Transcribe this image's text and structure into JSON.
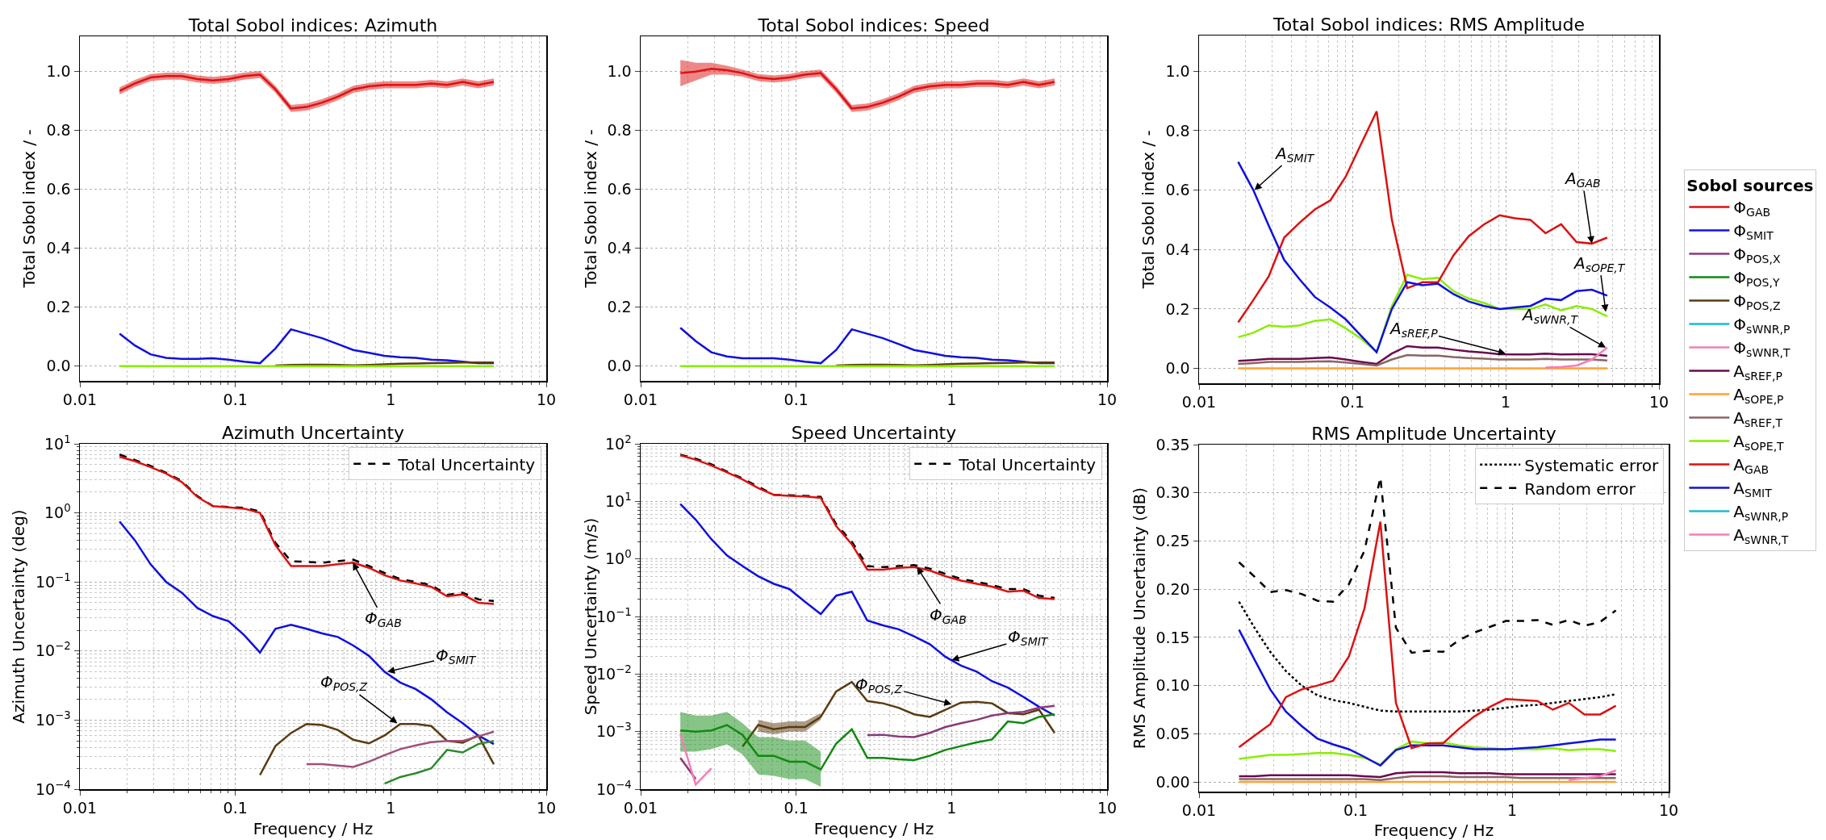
{
  "chart_data": [
    {
      "type": "line",
      "title": "Total Sobol indices: Azimuth",
      "ylabel": "Total Sobol index / -",
      "log": "x",
      "grid": true,
      "legend": false,
      "xlim": [
        0.01,
        10
      ],
      "xticks": [
        0.01,
        0.1,
        1,
        10
      ],
      "ylim": [
        -0.05,
        1.12
      ],
      "yticks": [
        {
          "value": 0,
          "label": "0.0"
        },
        {
          "value": 0.2,
          "label": "0.2"
        },
        {
          "value": 0.4,
          "label": "0.4"
        },
        {
          "value": 0.6,
          "label": "0.6"
        },
        {
          "value": 0.8,
          "label": "0.8"
        },
        {
          "value": 1,
          "label": "1.0"
        }
      ],
      "x": [
        0.018,
        0.0226,
        0.0285,
        0.0359,
        0.0452,
        0.057,
        0.0718,
        0.0905,
        0.114,
        0.144,
        0.181,
        0.228,
        0.287,
        0.362,
        0.456,
        0.574,
        0.724,
        0.912,
        1.15,
        1.45,
        1.82,
        2.3,
        2.9,
        3.65,
        4.6
      ],
      "series": [
        {
          "color": "#dd1111",
          "values": [
            0.935,
            0.96,
            0.98,
            0.985,
            0.985,
            0.975,
            0.97,
            0.975,
            0.985,
            0.99,
            0.94,
            0.875,
            0.88,
            0.895,
            0.915,
            0.94,
            0.95,
            0.955,
            0.955,
            0.955,
            0.96,
            0.955,
            0.965,
            0.955,
            0.965
          ],
          "lower": [
            0.923,
            0.948,
            0.968,
            0.973,
            0.973,
            0.963,
            0.958,
            0.963,
            0.973,
            0.978,
            0.928,
            0.863,
            0.868,
            0.883,
            0.903,
            0.928,
            0.938,
            0.943,
            0.943,
            0.943,
            0.948,
            0.943,
            0.953,
            0.943,
            0.953
          ],
          "upper": [
            0.947,
            0.972,
            0.992,
            0.997,
            0.997,
            0.987,
            0.982,
            0.987,
            0.997,
            1.002,
            0.952,
            0.887,
            0.892,
            0.907,
            0.927,
            0.952,
            0.962,
            0.967,
            0.967,
            0.967,
            0.972,
            0.967,
            0.977,
            0.967,
            0.977
          ]
        },
        {
          "color": "#1010e0",
          "values": [
            0.11,
            0.07,
            0.04,
            0.028,
            0.025,
            0.025,
            0.027,
            0.022,
            0.015,
            0.01,
            0.06,
            0.125,
            0.11,
            0.095,
            0.075,
            0.055,
            0.045,
            0.035,
            0.03,
            0.028,
            0.022,
            0.02,
            0.015,
            0.01,
            0.01
          ]
        },
        {
          "color": "#5a3a10",
          "values": [
            null,
            null,
            null,
            null,
            null,
            null,
            null,
            null,
            null,
            null,
            0.002,
            0.004,
            0.005,
            0.005,
            0.004,
            0.003,
            0.004,
            0.006,
            0.008,
            0.009,
            0.01,
            0.011,
            0.012,
            0.012,
            0.012
          ]
        },
        {
          "color": "#88ee00",
          "values": [
            0,
            0,
            0,
            0,
            0,
            0,
            0,
            0,
            0,
            0,
            0,
            0,
            0,
            0,
            0,
            0,
            0,
            0,
            0,
            0,
            0,
            0,
            0,
            0,
            0
          ]
        }
      ]
    },
    {
      "type": "line",
      "title": "Total Sobol indices: Speed",
      "ylabel": "Total Sobol index / -",
      "log": "x",
      "grid": true,
      "legend": false,
      "xlim": [
        0.01,
        10
      ],
      "xticks": [
        0.01,
        0.1,
        1,
        10
      ],
      "ylim": [
        -0.05,
        1.12
      ],
      "yticks": [
        {
          "value": 0,
          "label": "0.0"
        },
        {
          "value": 0.2,
          "label": "0.2"
        },
        {
          "value": 0.4,
          "label": "0.4"
        },
        {
          "value": 0.6,
          "label": "0.6"
        },
        {
          "value": 0.8,
          "label": "0.8"
        },
        {
          "value": 1,
          "label": "1.0"
        }
      ],
      "x": [
        0.018,
        0.0226,
        0.0285,
        0.0359,
        0.0452,
        0.057,
        0.0718,
        0.0905,
        0.114,
        0.144,
        0.181,
        0.228,
        0.287,
        0.362,
        0.456,
        0.574,
        0.724,
        0.912,
        1.15,
        1.45,
        1.82,
        2.3,
        2.9,
        3.65,
        4.6
      ],
      "series": [
        {
          "color": "#dd1111",
          "values": [
            0.995,
            1.0,
            1.01,
            1.005,
            0.995,
            0.98,
            0.975,
            0.98,
            0.99,
            0.995,
            0.94,
            0.875,
            0.88,
            0.895,
            0.915,
            0.94,
            0.95,
            0.955,
            0.955,
            0.96,
            0.96,
            0.955,
            0.965,
            0.955,
            0.965
          ],
          "lower": [
            0.95,
            0.97,
            0.99,
            0.99,
            0.983,
            0.968,
            0.963,
            0.968,
            0.978,
            0.983,
            0.928,
            0.863,
            0.868,
            0.883,
            0.903,
            0.928,
            0.938,
            0.943,
            0.943,
            0.948,
            0.948,
            0.943,
            0.953,
            0.943,
            0.953
          ],
          "upper": [
            1.04,
            1.03,
            1.03,
            1.02,
            1.007,
            0.992,
            0.987,
            0.992,
            1.002,
            1.007,
            0.952,
            0.887,
            0.892,
            0.907,
            0.927,
            0.952,
            0.962,
            0.967,
            0.967,
            0.972,
            0.972,
            0.967,
            0.977,
            0.967,
            0.977
          ]
        },
        {
          "color": "#1010e0",
          "values": [
            0.13,
            0.085,
            0.047,
            0.033,
            0.027,
            0.027,
            0.027,
            0.022,
            0.015,
            0.01,
            0.055,
            0.125,
            0.11,
            0.095,
            0.075,
            0.055,
            0.045,
            0.035,
            0.03,
            0.028,
            0.022,
            0.02,
            0.015,
            0.01,
            0.01
          ]
        },
        {
          "color": "#5a3a10",
          "values": [
            null,
            null,
            null,
            null,
            null,
            null,
            null,
            null,
            null,
            null,
            0.002,
            0.004,
            0.005,
            0.005,
            0.004,
            0.003,
            0.004,
            0.006,
            0.008,
            0.009,
            0.01,
            0.011,
            0.012,
            0.012,
            0.012
          ]
        },
        {
          "color": "#88ee00",
          "values": [
            0,
            0,
            0,
            0,
            0,
            0,
            0,
            0,
            0,
            0,
            0,
            0,
            0,
            0,
            0,
            0,
            0,
            0,
            0,
            0,
            0,
            0,
            0,
            0,
            0
          ]
        }
      ]
    },
    {
      "type": "line",
      "title": "Total Sobol indices: RMS Amplitude",
      "ylabel": "Total Sobol index / -",
      "log": "x",
      "grid": true,
      "legend": "right",
      "legend_title": "Sobol sources",
      "xlim": [
        0.01,
        10
      ],
      "xticks": [
        0.01,
        0.1,
        1,
        10
      ],
      "ylim": [
        -0.05,
        1.12
      ],
      "yticks": [
        {
          "value": 0,
          "label": "0.0"
        },
        {
          "value": 0.2,
          "label": "0.2"
        },
        {
          "value": 0.4,
          "label": "0.4"
        },
        {
          "value": 0.6,
          "label": "0.6"
        },
        {
          "value": 0.8,
          "label": "0.8"
        },
        {
          "value": 1,
          "label": "1.0"
        }
      ],
      "x": [
        0.018,
        0.0226,
        0.0285,
        0.0359,
        0.0452,
        0.057,
        0.0718,
        0.0905,
        0.114,
        0.144,
        0.181,
        0.228,
        0.287,
        0.362,
        0.456,
        0.574,
        0.724,
        0.912,
        1.15,
        1.45,
        1.82,
        2.3,
        2.9,
        3.65,
        4.6
      ],
      "annotations": [
        {
          "text": "A$_{SMIT}$",
          "x": 0.023,
          "y": 0.6
        },
        {
          "text": "A$_{GAB}$",
          "x": 3.65,
          "y": 0.42
        },
        {
          "text": "A$_{sOPE,T}$",
          "x": 4.5,
          "y": 0.19
        },
        {
          "text": "A$_{sREF,P}$",
          "x": 1.0,
          "y": 0.05
        },
        {
          "text": "A$_{sWNR,T}$",
          "x": 4.5,
          "y": 0.07
        }
      ],
      "series": [
        {
          "name": "Φ$_{GAB}$",
          "color": "#dd1111",
          "values": [
            null,
            null,
            null,
            null,
            null,
            null,
            null,
            null,
            null,
            null,
            null,
            null,
            null,
            null,
            null,
            null,
            null,
            null,
            null,
            null,
            null,
            null,
            null,
            null,
            null
          ]
        },
        {
          "name": "Φ$_{SMIT}$",
          "color": "#1010e0",
          "values": [
            null,
            null,
            null,
            null,
            null,
            null,
            null,
            null,
            null,
            null,
            null,
            null,
            null,
            null,
            null,
            null,
            null,
            null,
            null,
            null,
            null,
            null,
            null,
            null,
            null
          ]
        },
        {
          "name": "Φ$_{POS,X}$",
          "color": "#8b3a78",
          "values": [
            null,
            null,
            null,
            null,
            null,
            null,
            null,
            null,
            null,
            null,
            null,
            null,
            null,
            null,
            null,
            null,
            null,
            null,
            null,
            null,
            null,
            null,
            null,
            null,
            null
          ]
        },
        {
          "name": "Φ$_{POS,Y}$",
          "color": "#108a10",
          "values": [
            null,
            null,
            null,
            null,
            null,
            null,
            null,
            null,
            null,
            null,
            null,
            null,
            null,
            null,
            null,
            null,
            null,
            null,
            null,
            null,
            null,
            null,
            null,
            null,
            null
          ]
        },
        {
          "name": "Φ$_{POS,Z}$",
          "color": "#5a3a10",
          "values": [
            null,
            null,
            null,
            null,
            null,
            null,
            null,
            null,
            null,
            null,
            null,
            null,
            null,
            null,
            null,
            null,
            null,
            null,
            null,
            null,
            null,
            null,
            null,
            null,
            null
          ]
        },
        {
          "name": "Φ$_{sWNR,P}$",
          "color": "#17becf",
          "values": [
            null,
            null,
            null,
            null,
            null,
            null,
            null,
            null,
            null,
            null,
            null,
            null,
            null,
            null,
            null,
            null,
            null,
            null,
            null,
            null,
            null,
            null,
            null,
            null,
            null
          ]
        },
        {
          "name": "Φ$_{sWNR,T}$",
          "color": "#f27fb8",
          "values": [
            null,
            null,
            null,
            null,
            null,
            null,
            null,
            null,
            null,
            null,
            null,
            null,
            null,
            null,
            null,
            null,
            null,
            null,
            null,
            null,
            null,
            null,
            null,
            null,
            null
          ]
        },
        {
          "name": "A$_{sREF,P}$",
          "color": "#6a0a50",
          "values": [
            0.025,
            0.028,
            0.032,
            0.032,
            0.032,
            0.035,
            0.037,
            0.03,
            0.022,
            0.015,
            0.05,
            0.075,
            0.07,
            0.07,
            0.063,
            0.057,
            0.053,
            0.048,
            0.047,
            0.047,
            0.05,
            0.047,
            0.048,
            0.048,
            0.042
          ]
        },
        {
          "name": "A$_{sOPE,P}$",
          "color": "#ffa030",
          "values": [
            0,
            0,
            0,
            0,
            0,
            0,
            0,
            0,
            0,
            0,
            0,
            0,
            0,
            0,
            0,
            0,
            0,
            0,
            0,
            0,
            0,
            0,
            0,
            0,
            0
          ]
        },
        {
          "name": "A$_{sREF,T}$",
          "color": "#8c6464",
          "values": [
            0.015,
            0.018,
            0.022,
            0.022,
            0.022,
            0.023,
            0.024,
            0.02,
            0.015,
            0.01,
            0.03,
            0.045,
            0.043,
            0.043,
            0.038,
            0.035,
            0.033,
            0.03,
            0.03,
            0.03,
            0.032,
            0.03,
            0.03,
            0.03,
            0.027
          ]
        },
        {
          "name": "A$_{sOPE,T}$",
          "color": "#88ee00",
          "values": [
            0.105,
            0.12,
            0.145,
            0.14,
            0.145,
            0.16,
            0.165,
            0.135,
            0.1,
            0.055,
            0.21,
            0.315,
            0.3,
            0.305,
            0.26,
            0.235,
            0.22,
            0.2,
            0.2,
            0.2,
            0.215,
            0.195,
            0.21,
            0.2,
            0.175
          ]
        },
        {
          "name": "A$_{GAB}$",
          "color": "#dd1111",
          "values": [
            0.155,
            0.23,
            0.31,
            0.44,
            0.49,
            0.535,
            0.565,
            0.645,
            0.755,
            0.865,
            0.5,
            0.27,
            0.29,
            0.29,
            0.38,
            0.445,
            0.485,
            0.515,
            0.505,
            0.5,
            0.455,
            0.485,
            0.425,
            0.42,
            0.44
          ]
        },
        {
          "name": "A$_{SMIT}$",
          "color": "#1010e0",
          "values": [
            0.695,
            0.6,
            0.48,
            0.365,
            0.3,
            0.24,
            0.205,
            0.165,
            0.11,
            0.055,
            0.2,
            0.29,
            0.28,
            0.285,
            0.25,
            0.225,
            0.21,
            0.2,
            0.205,
            0.21,
            0.235,
            0.23,
            0.26,
            0.265,
            0.245
          ]
        },
        {
          "name": "A$_{sWNR,P}$",
          "color": "#17becf",
          "values": [
            null,
            null,
            null,
            null,
            null,
            null,
            null,
            null,
            null,
            null,
            null,
            null,
            null,
            null,
            null,
            null,
            null,
            null,
            null,
            null,
            null,
            null,
            null,
            null,
            null
          ]
        },
        {
          "name": "A$_{sWNR,T}$",
          "color": "#f27fb8",
          "values": [
            null,
            null,
            null,
            null,
            null,
            null,
            null,
            null,
            null,
            null,
            null,
            null,
            null,
            null,
            null,
            null,
            null,
            null,
            null,
            null,
            0.003,
            0.005,
            0.01,
            0.03,
            0.07
          ]
        }
      ]
    },
    {
      "type": "line",
      "title": "Azimuth Uncertainty",
      "xlabel": "Frequency / Hz",
      "ylabel": "Azimuth Uncertainty (deg)",
      "log": "xy",
      "grid": true,
      "legend": "top right",
      "xlim": [
        0.01,
        10
      ],
      "xticks": [
        0.01,
        0.1,
        1,
        10
      ],
      "ylim": [
        0.0001,
        10
      ],
      "yticks": [
        {
          "value": 0.0001,
          "label": "10$^{−4}$"
        },
        {
          "value": 0.001,
          "label": "10$^{−3}$"
        },
        {
          "value": 0.01,
          "label": "10$^{−2}$"
        },
        {
          "value": 0.1,
          "label": "10$^{−1}$"
        },
        {
          "value": 1,
          "label": "10$^{0}$"
        },
        {
          "value": 10,
          "label": "10$^{1}$"
        }
      ],
      "x": [
        0.018,
        0.0226,
        0.0285,
        0.0359,
        0.0452,
        0.057,
        0.0718,
        0.0905,
        0.114,
        0.144,
        0.181,
        0.228,
        0.287,
        0.362,
        0.456,
        0.574,
        0.724,
        0.912,
        1.15,
        1.45,
        1.82,
        2.3,
        2.9,
        3.65,
        4.6
      ],
      "annotations": [
        {
          "text": "Φ$_{GAB}$",
          "x": 0.57,
          "y": 0.19
        },
        {
          "text": "Φ$_{SMIT}$",
          "x": 0.95,
          "y": 0.005
        },
        {
          "text": "Φ$_{POS,Z}$",
          "x": 1.1,
          "y": 0.0009
        }
      ],
      "series": [
        {
          "name": "Total Uncertainty",
          "color": "#000000",
          "line_style": "dashed",
          "values": [
            7,
            5.8,
            4.8,
            3.8,
            2.9,
            1.75,
            1.25,
            1.22,
            1.18,
            1.05,
            0.37,
            0.2,
            0.195,
            0.19,
            0.2,
            0.21,
            0.17,
            0.135,
            0.11,
            0.1,
            0.09,
            0.065,
            0.07,
            0.056,
            0.053
          ]
        },
        {
          "color": "#dd1111",
          "values": [
            6.5,
            5.6,
            4.6,
            3.7,
            2.8,
            1.7,
            1.25,
            1.2,
            1.15,
            1.0,
            0.34,
            0.17,
            0.17,
            0.17,
            0.18,
            0.19,
            0.16,
            0.125,
            0.105,
            0.095,
            0.085,
            0.062,
            0.066,
            0.05,
            0.048
          ]
        },
        {
          "color": "#1010e0",
          "values": [
            0.75,
            0.4,
            0.18,
            0.1,
            0.07,
            0.042,
            0.032,
            0.027,
            0.017,
            0.0095,
            0.021,
            0.024,
            0.021,
            0.018,
            0.016,
            0.012,
            0.0085,
            0.005,
            0.0035,
            0.0028,
            0.002,
            0.0013,
            0.0009,
            0.0006,
            0.00045
          ]
        },
        {
          "color": "#5a3a10",
          "values": [
            null,
            null,
            null,
            null,
            null,
            null,
            null,
            null,
            null,
            0.00016,
            0.00042,
            0.00065,
            0.00088,
            0.00085,
            0.00072,
            0.00052,
            0.00046,
            0.0006,
            0.00088,
            0.00088,
            0.00082,
            0.0005,
            0.00047,
            0.0006,
            0.00023
          ]
        },
        {
          "color": "#a0507a",
          "values": [
            null,
            null,
            null,
            null,
            null,
            null,
            null,
            null,
            null,
            null,
            null,
            null,
            0.00023,
            0.00023,
            0.00022,
            0.00021,
            0.00025,
            0.00031,
            0.00038,
            0.00043,
            0.00048,
            0.0005,
            0.0005,
            0.00058,
            0.00068
          ]
        },
        {
          "color": "#2a8a2a",
          "values": [
            null,
            null,
            null,
            null,
            null,
            null,
            null,
            null,
            null,
            null,
            null,
            null,
            null,
            null,
            null,
            null,
            null,
            0.00012,
            0.00015,
            0.00017,
            0.0002,
            0.00037,
            0.00034,
            0.00045,
            0.0005
          ]
        }
      ]
    },
    {
      "type": "line",
      "title": "Speed Uncertainty",
      "xlabel": "Frequency / Hz",
      "ylabel": "Speed Uncertainty (m/s)",
      "log": "xy",
      "grid": true,
      "legend": "top right",
      "xlim": [
        0.01,
        10
      ],
      "xticks": [
        0.01,
        0.1,
        1,
        10
      ],
      "ylim": [
        0.0001,
        100
      ],
      "yticks": [
        {
          "value": 0.0001,
          "label": "10$^{−4}$"
        },
        {
          "value": 0.001,
          "label": "10$^{−3}$"
        },
        {
          "value": 0.01,
          "label": "10$^{−2}$"
        },
        {
          "value": 0.1,
          "label": "10$^{−1}$"
        },
        {
          "value": 1,
          "label": "10$^{0}$"
        },
        {
          "value": 10,
          "label": "10$^{1}$"
        },
        {
          "value": 100,
          "label": "10$^{2}$"
        }
      ],
      "x": [
        0.018,
        0.0226,
        0.0285,
        0.0359,
        0.0452,
        0.057,
        0.0718,
        0.0905,
        0.114,
        0.144,
        0.181,
        0.228,
        0.287,
        0.362,
        0.456,
        0.574,
        0.724,
        0.912,
        1.15,
        1.45,
        1.82,
        2.3,
        2.9,
        3.65,
        4.6
      ],
      "annotations": [
        {
          "text": "Φ$_{GAB}$",
          "x": 0.6,
          "y": 0.72
        },
        {
          "text": "Φ$_{SMIT}$",
          "x": 1.0,
          "y": 0.0175
        },
        {
          "text": "Φ$_{POS,Z}$",
          "x": 1.0,
          "y": 0.003
        }
      ],
      "series": [
        {
          "name": "Total Uncertainty",
          "color": "#000000",
          "line_style": "dashed",
          "values": [
            65,
            55,
            44,
            33,
            25,
            18,
            13,
            12.8,
            12.5,
            12,
            4,
            2,
            0.75,
            0.72,
            0.75,
            0.78,
            0.68,
            0.55,
            0.45,
            0.4,
            0.35,
            0.3,
            0.3,
            0.23,
            0.21
          ]
        },
        {
          "color": "#dd1111",
          "values": [
            63,
            53,
            42,
            32,
            24,
            17,
            13,
            12.5,
            12.2,
            11.5,
            3.7,
            1.8,
            0.65,
            0.65,
            0.7,
            0.72,
            0.63,
            0.5,
            0.42,
            0.37,
            0.33,
            0.27,
            0.28,
            0.21,
            0.2
          ]
        },
        {
          "color": "#1010e0",
          "values": [
            9,
            4.8,
            2.2,
            1.15,
            0.75,
            0.5,
            0.37,
            0.3,
            0.18,
            0.11,
            0.23,
            0.27,
            0.085,
            0.07,
            0.06,
            0.045,
            0.033,
            0.02,
            0.014,
            0.011,
            0.0075,
            0.0058,
            0.004,
            0.0027,
            0.0019
          ]
        },
        {
          "color": "#5a3a10",
          "values": [
            null,
            null,
            null,
            null,
            0.00055,
            0.0013,
            0.0011,
            0.0012,
            0.0012,
            0.0018,
            0.005,
            0.0073,
            0.0034,
            0.0031,
            0.0026,
            0.002,
            0.0018,
            0.0024,
            0.0032,
            0.0033,
            0.0031,
            0.0021,
            0.002,
            0.0024,
            0.00095
          ],
          "lower": [
            null,
            null,
            null,
            null,
            null,
            0.001,
            0.0009,
            0.001,
            0.001,
            0.0016,
            null,
            null,
            null,
            null,
            null,
            null,
            null,
            null,
            null,
            null,
            null,
            null,
            null,
            null,
            null
          ],
          "upper": [
            null,
            null,
            null,
            null,
            null,
            0.0016,
            0.0014,
            0.0015,
            0.0015,
            0.0021,
            null,
            null,
            null,
            null,
            null,
            null,
            null,
            null,
            null,
            null,
            null,
            null,
            null,
            null,
            null
          ]
        },
        {
          "color": "#108a10",
          "values": [
            0.00105,
            0.001,
            0.00105,
            0.0013,
            0.00088,
            0.00038,
            0.00038,
            0.0003,
            0.0003,
            0.00022,
            0.00062,
            0.0011,
            0.00035,
            0.00035,
            0.00033,
            0.00032,
            0.00038,
            0.00048,
            0.00056,
            0.00065,
            0.00073,
            0.0015,
            0.0014,
            0.0018,
            0.002
          ],
          "lower": [
            0.00045,
            0.00045,
            0.0005,
            0.0006,
            0.0004,
            0.00018,
            0.00017,
            0.00015,
            0.00015,
            0.00011,
            null,
            null,
            null,
            null,
            null,
            null,
            null,
            null,
            null,
            null,
            null,
            null,
            null,
            null,
            null
          ],
          "upper": [
            0.0022,
            0.0019,
            0.0019,
            0.0022,
            0.0014,
            0.0008,
            0.0008,
            0.0007,
            0.0007,
            0.00045,
            null,
            null,
            null,
            null,
            null,
            null,
            null,
            null,
            null,
            null,
            null,
            null,
            null,
            null,
            null
          ]
        },
        {
          "color": "#8b3a78",
          "values": [
            0.00035,
            0.00015,
            null,
            null,
            null,
            null,
            null,
            null,
            null,
            null,
            null,
            null,
            0.00087,
            0.00088,
            0.00082,
            0.0008,
            0.00095,
            0.0012,
            0.0014,
            0.0016,
            0.0019,
            0.0021,
            0.0022,
            0.0026,
            0.0028
          ]
        },
        {
          "color": "#f27fb8",
          "values": [
            0.0009,
            0.00012,
            0.00023,
            null,
            null,
            null,
            null,
            null,
            null,
            null,
            null,
            null,
            null,
            null,
            null,
            null,
            null,
            null,
            null,
            null,
            null,
            null,
            null,
            null,
            null
          ]
        }
      ]
    },
    {
      "type": "line",
      "title": "RMS Amplitude Uncertainty",
      "xlabel": "Frequency / Hz",
      "ylabel": "RMS Amplitude Uncertainty (dB)",
      "log": "x",
      "grid": true,
      "legend": "top right",
      "xlim": [
        0.01,
        10
      ],
      "xticks": [
        0.01,
        0.1,
        1,
        10
      ],
      "ylim": [
        -0.01,
        0.35
      ],
      "yticks": [
        {
          "value": 0,
          "label": "0.00"
        },
        {
          "value": 0.05,
          "label": "0.05"
        },
        {
          "value": 0.1,
          "label": "0.10"
        },
        {
          "value": 0.15,
          "label": "0.15"
        },
        {
          "value": 0.2,
          "label": "0.20"
        },
        {
          "value": 0.25,
          "label": "0.25"
        },
        {
          "value": 0.3,
          "label": "0.30"
        },
        {
          "value": 0.35,
          "label": "0.35"
        }
      ],
      "x": [
        0.018,
        0.0226,
        0.0285,
        0.0359,
        0.0452,
        0.057,
        0.0718,
        0.0905,
        0.114,
        0.144,
        0.181,
        0.228,
        0.287,
        0.362,
        0.456,
        0.574,
        0.724,
        0.912,
        1.15,
        1.45,
        1.82,
        2.3,
        2.9,
        3.65,
        4.6
      ],
      "series": [
        {
          "name": "Systematic error",
          "color": "#000000",
          "line_style": "dotted",
          "values": [
            0.187,
            0.16,
            0.135,
            0.115,
            0.1,
            0.09,
            0.085,
            0.082,
            0.078,
            0.074,
            0.073,
            0.073,
            0.073,
            0.073,
            0.073,
            0.074,
            0.075,
            0.077,
            0.079,
            0.08,
            0.082,
            0.084,
            0.086,
            0.088,
            0.091
          ]
        },
        {
          "name": "Random error",
          "color": "#000000",
          "line_style": "dashed",
          "values": [
            0.228,
            0.213,
            0.197,
            0.199,
            0.195,
            0.188,
            0.187,
            0.205,
            0.24,
            0.316,
            0.16,
            0.134,
            0.136,
            0.135,
            0.147,
            0.155,
            0.161,
            0.167,
            0.167,
            0.168,
            0.163,
            0.168,
            0.162,
            0.166,
            0.178
          ]
        },
        {
          "color": "#6a0a50",
          "values": [
            0.006,
            0.006,
            0.007,
            0.007,
            0.007,
            0.007,
            0.007,
            0.007,
            0.006,
            0.005,
            0.009,
            0.01,
            0.01,
            0.01,
            0.009,
            0.009,
            0.009,
            0.008,
            0.008,
            0.008,
            0.008,
            0.008,
            0.008,
            0.008,
            0.008
          ]
        },
        {
          "color": "#ffa030",
          "values": [
            0,
            0,
            0,
            0,
            0,
            0,
            0,
            0,
            0,
            0,
            0,
            0,
            0,
            0,
            0,
            0,
            0,
            0,
            0,
            0,
            0,
            0,
            0,
            0,
            0
          ]
        },
        {
          "color": "#8c6464",
          "values": [
            0.003,
            0.003,
            0.003,
            0.003,
            0.003,
            0.003,
            0.003,
            0.003,
            0.003,
            0.002,
            0.004,
            0.006,
            0.006,
            0.006,
            0.005,
            0.005,
            0.005,
            0.005,
            0.004,
            0.004,
            0.004,
            0.004,
            0.004,
            0.004,
            0.004
          ]
        },
        {
          "color": "#f27fb8",
          "values": [
            null,
            null,
            null,
            null,
            null,
            null,
            null,
            null,
            null,
            null,
            null,
            null,
            null,
            null,
            null,
            null,
            null,
            null,
            null,
            null,
            null,
            0.002,
            0.004,
            0.006,
            0.012
          ]
        },
        {
          "color": "#88ee00",
          "values": [
            0.024,
            0.026,
            0.028,
            0.028,
            0.029,
            0.03,
            0.03,
            0.028,
            0.025,
            0.018,
            0.034,
            0.042,
            0.04,
            0.041,
            0.038,
            0.036,
            0.035,
            0.034,
            0.034,
            0.034,
            0.035,
            0.033,
            0.034,
            0.034,
            0.032
          ]
        },
        {
          "color": "#1010e0",
          "values": [
            0.158,
            0.127,
            0.096,
            0.073,
            0.058,
            0.045,
            0.039,
            0.034,
            0.026,
            0.017,
            0.033,
            0.038,
            0.038,
            0.038,
            0.036,
            0.034,
            0.034,
            0.034,
            0.035,
            0.036,
            0.038,
            0.04,
            0.042,
            0.044,
            0.044
          ]
        },
        {
          "color": "#dd1111",
          "values": [
            0.036,
            0.048,
            0.06,
            0.088,
            0.096,
            0.1,
            0.105,
            0.13,
            0.18,
            0.27,
            0.082,
            0.035,
            0.04,
            0.04,
            0.055,
            0.068,
            0.078,
            0.086,
            0.085,
            0.084,
            0.075,
            0.082,
            0.07,
            0.07,
            0.079
          ]
        }
      ]
    }
  ]
}
